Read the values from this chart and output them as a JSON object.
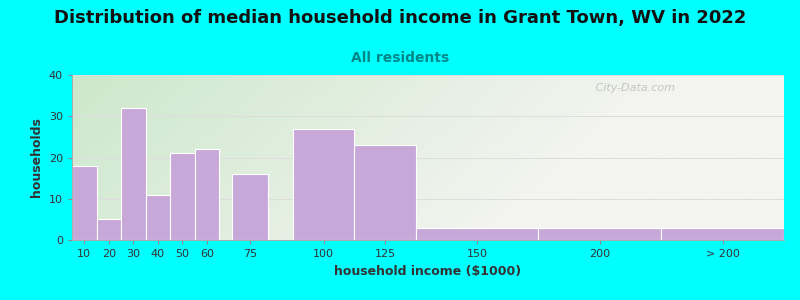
{
  "title": "Distribution of median household income in Grant Town, WV in 2022",
  "subtitle": "All residents",
  "xlabel": "household income ($1000)",
  "ylabel": "households",
  "bar_labels": [
    "10",
    "20",
    "30",
    "40",
    "50",
    "60",
    "75",
    "100",
    "125",
    "150",
    "200",
    "> 200"
  ],
  "bar_values": [
    18,
    5,
    32,
    11,
    21,
    22,
    16,
    27,
    23,
    3,
    3,
    3
  ],
  "bar_color": "#c8a8d8",
  "bar_edge_color": "#ffffff",
  "ylim": [
    0,
    40
  ],
  "yticks": [
    0,
    10,
    20,
    30,
    40
  ],
  "bg_color": "#00ffff",
  "plot_bg_gradient_top_left": "#cce8cc",
  "plot_bg_gradient_right": "#f4f4f0",
  "title_fontsize": 13,
  "subtitle_fontsize": 10,
  "subtitle_color": "#008888",
  "axis_label_fontsize": 9,
  "tick_fontsize": 8,
  "watermark_text": "   City-Data.com",
  "watermark_color": "#bbbbbb",
  "bar_widths": [
    10,
    10,
    10,
    10,
    10,
    10,
    15,
    25,
    25,
    50,
    50,
    50
  ],
  "bar_lefts": [
    10,
    20,
    30,
    40,
    50,
    60,
    75,
    100,
    125,
    150,
    200,
    250
  ],
  "xlim_left": 10,
  "xlim_right": 300,
  "grid_color": "#dddddd"
}
